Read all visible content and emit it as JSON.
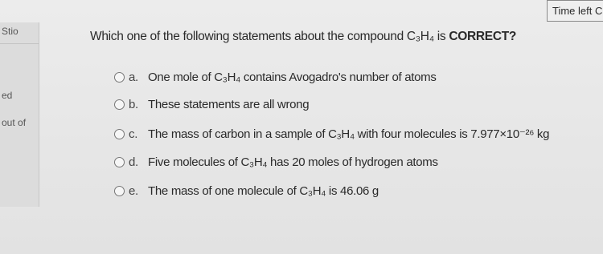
{
  "timer": "Time left C",
  "sidebar": [
    "Stio",
    "ed",
    "out of"
  ],
  "question": {
    "text": "Which one of the following statements about the compound C₃H₄ is",
    "emphasis": "CORRECT?"
  },
  "options": [
    {
      "letter": "a.",
      "text": "One mole of C₃H₄ contains Avogadro's number of atoms"
    },
    {
      "letter": "b.",
      "text": "These statements are all wrong"
    },
    {
      "letter": "c.",
      "text": "The mass of carbon in a sample of C₃H₄ with four molecules is 7.977×10⁻²⁶ kg"
    },
    {
      "letter": "d.",
      "text": "Five molecules of C₃H₄ has 20 moles of hydrogen atoms"
    },
    {
      "letter": "e.",
      "text": "The mass of one molecule of C₃H₄ is 46.06 g"
    }
  ]
}
